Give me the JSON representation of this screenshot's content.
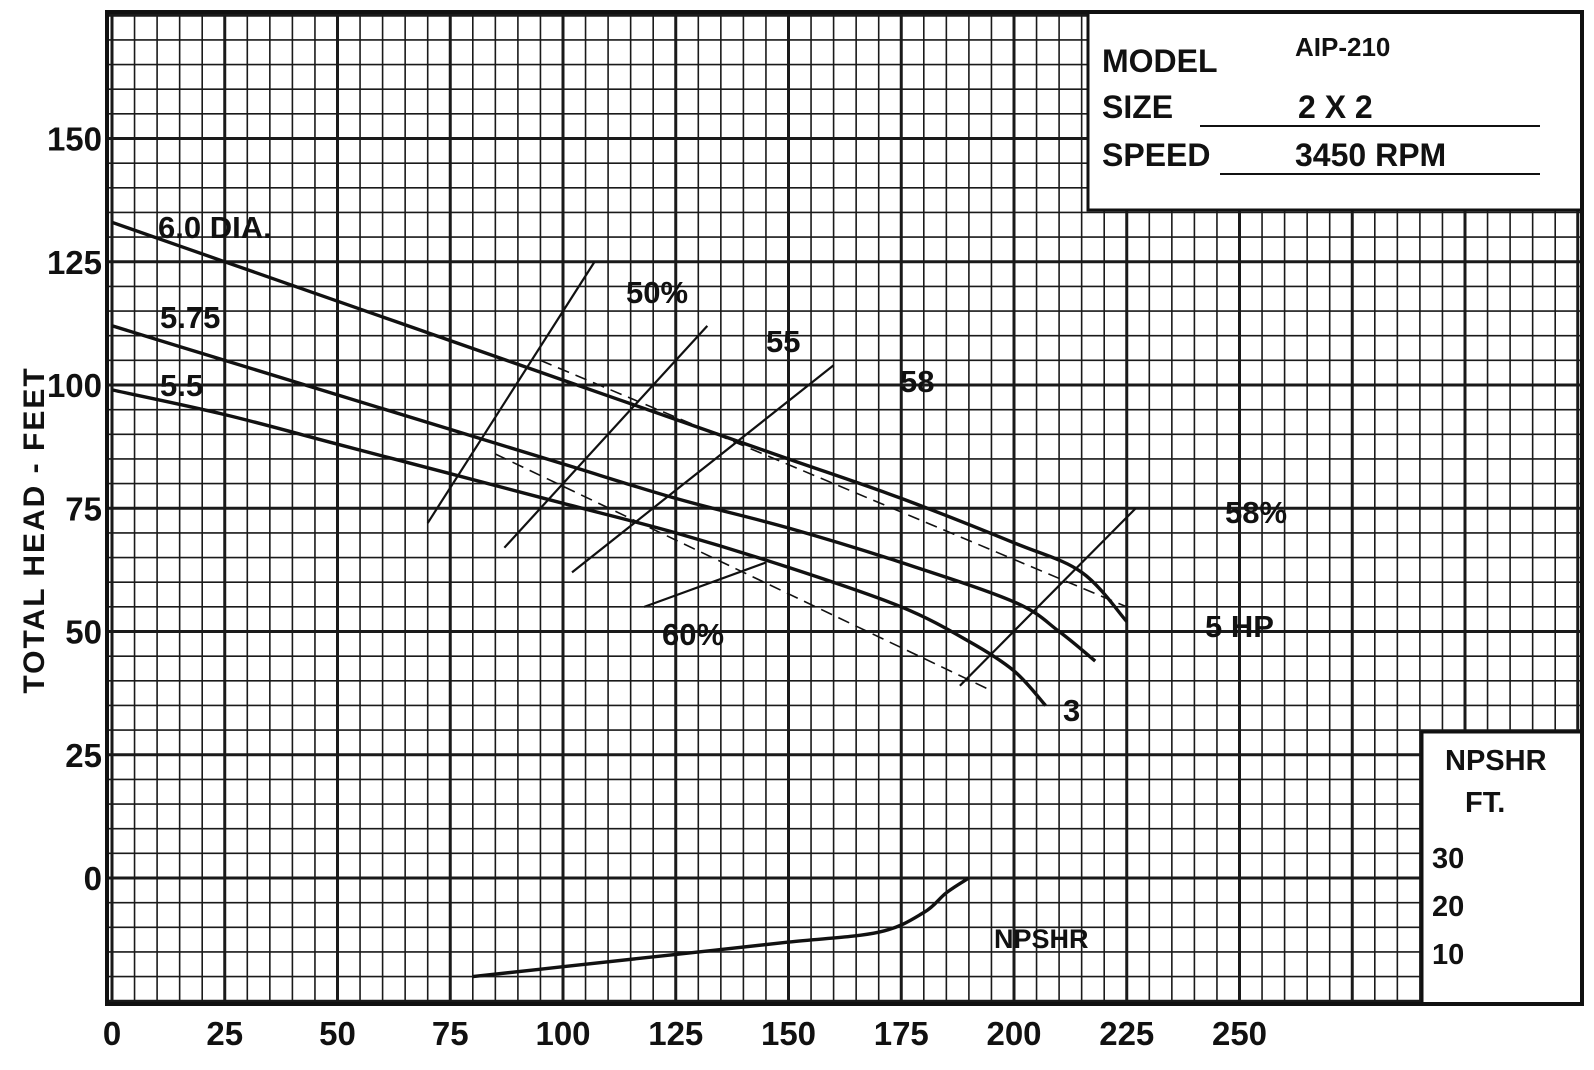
{
  "chart_data": {
    "type": "line",
    "title": "",
    "xlabel": "",
    "ylabel": "TOTAL HEAD - FEET",
    "xlim": [
      0,
      265
    ],
    "ylim": [
      -24,
      180
    ],
    "grid": true,
    "x_ticks": [
      "0",
      "25",
      "50",
      "75",
      "100",
      "125",
      "150",
      "175",
      "200",
      "225",
      "250"
    ],
    "y_ticks": [
      "0",
      "25",
      "50",
      "75",
      "100",
      "125",
      "150"
    ],
    "info_box": {
      "model_label": "MODEL",
      "model_value": "AIP-210",
      "size_label": "SIZE",
      "size_value": "2 X 2",
      "speed_label": "SPEED",
      "speed_value": "3450 RPM"
    },
    "npshr_scale": {
      "title": "NPSHR",
      "unit": "FT.",
      "ticks": [
        "30",
        "20",
        "10"
      ]
    },
    "series": [
      {
        "name": "6.0 DIA.",
        "kind": "head",
        "x": [
          0,
          25,
          50,
          75,
          100,
          125,
          150,
          175,
          200,
          215,
          225
        ],
        "y": [
          133,
          125,
          117,
          109,
          101,
          93,
          85,
          77,
          68,
          62,
          52
        ]
      },
      {
        "name": "5.75",
        "kind": "head",
        "x": [
          0,
          25,
          50,
          75,
          100,
          125,
          150,
          175,
          200,
          210,
          218
        ],
        "y": [
          112,
          105,
          98,
          91,
          84,
          77,
          71,
          64,
          56,
          50,
          44
        ]
      },
      {
        "name": "5.5",
        "kind": "head",
        "x": [
          0,
          25,
          50,
          75,
          100,
          125,
          150,
          175,
          190,
          200,
          207
        ],
        "y": [
          99,
          94,
          88,
          82,
          76,
          70,
          63,
          55,
          48,
          42,
          35
        ]
      },
      {
        "name": "NPSHR",
        "kind": "npshr",
        "x": [
          80,
          100,
          125,
          150,
          170,
          180,
          185,
          190
        ],
        "y": [
          -20,
          -18,
          -15.5,
          -13,
          -11,
          -7,
          -3,
          0
        ]
      }
    ],
    "efficiency_lines": [
      {
        "label": "50%",
        "x": [
          70,
          107
        ],
        "y": [
          72,
          125
        ]
      },
      {
        "label": "55",
        "x": [
          87,
          132
        ],
        "y": [
          67,
          112
        ]
      },
      {
        "label": "58",
        "x": [
          102,
          160
        ],
        "y": [
          62,
          104
        ]
      },
      {
        "label": "58%",
        "x": [
          188,
          227
        ],
        "y": [
          39,
          75
        ]
      },
      {
        "label": "60%",
        "x": [
          118,
          145
        ],
        "y": [
          55,
          64
        ]
      }
    ],
    "hp_lines": [
      {
        "label": "5 HP",
        "x": [
          95,
          225
        ],
        "y": [
          105,
          55
        ]
      },
      {
        "label": "3",
        "x": [
          85,
          195
        ],
        "y": [
          86,
          38
        ]
      }
    ]
  }
}
